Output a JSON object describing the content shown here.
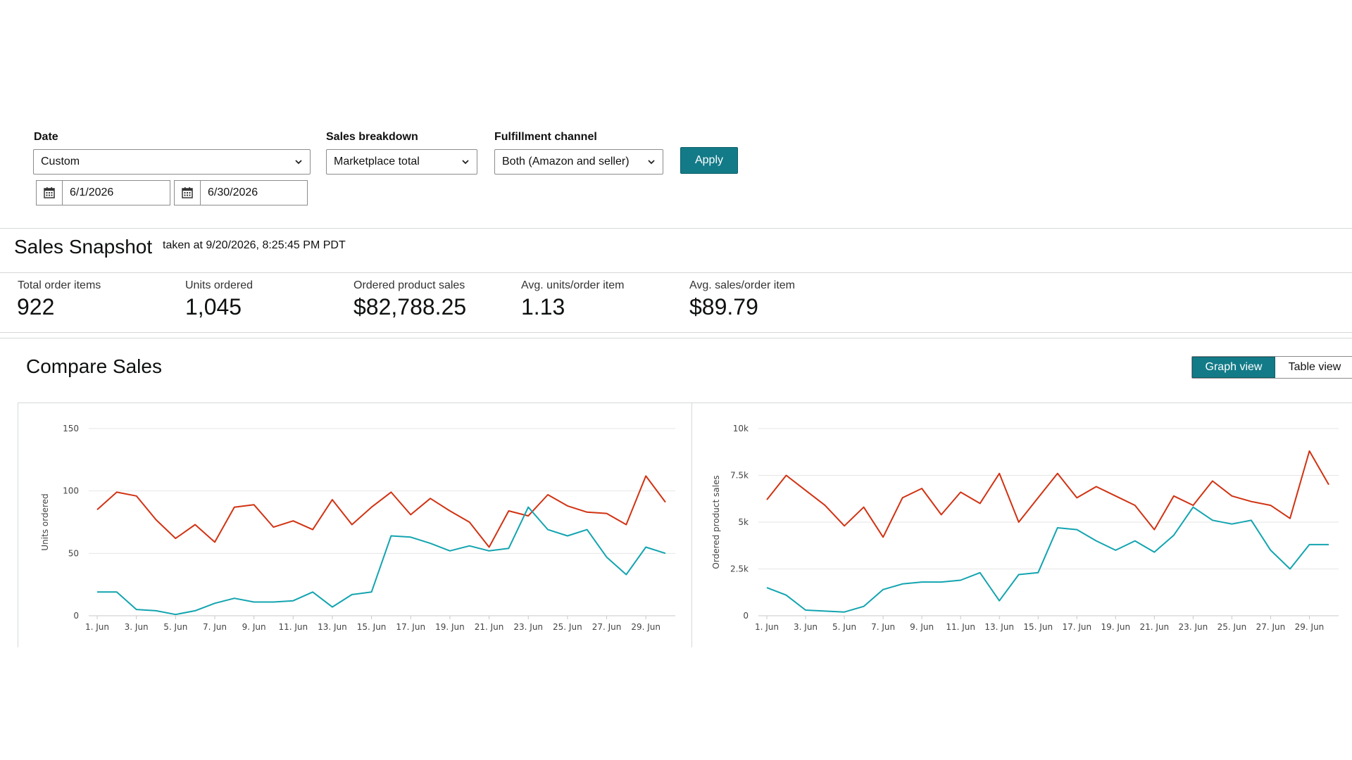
{
  "filters": {
    "date": {
      "label": "Date",
      "value": "Custom",
      "start": "6/1/2026",
      "end": "6/30/2026"
    },
    "breakdown": {
      "label": "Sales breakdown",
      "value": "Marketplace total"
    },
    "fulfillment": {
      "label": "Fulfillment channel",
      "value": "Both (Amazon and seller)"
    },
    "apply_label": "Apply"
  },
  "snapshot": {
    "title": "Sales Snapshot",
    "taken_at": "taken at 9/20/2026, 8:25:45 PM PDT",
    "metrics": [
      {
        "label": "Total order items",
        "value": "922"
      },
      {
        "label": "Units ordered",
        "value": "1,045"
      },
      {
        "label": "Ordered product sales",
        "value": "$82,788.25"
      },
      {
        "label": "Avg. units/order item",
        "value": "1.13"
      },
      {
        "label": "Avg. sales/order item",
        "value": "$89.79"
      }
    ]
  },
  "compare": {
    "title": "Compare Sales",
    "graph_view_label": "Graph view",
    "table_view_label": "Table view"
  },
  "colors": {
    "accent": "#137b88",
    "series_red": "#d13212",
    "series_teal": "#12a4b0"
  },
  "chart_data": [
    {
      "type": "line",
      "ylabel": "Units ordered",
      "ylim": [
        0,
        150
      ],
      "yticks": [
        "0",
        "50",
        "100",
        "150"
      ],
      "x": [
        "1. Jun",
        "2. Jun",
        "3. Jun",
        "4. Jun",
        "5. Jun",
        "6. Jun",
        "7. Jun",
        "8. Jun",
        "9. Jun",
        "10. Jun",
        "11. Jun",
        "12. Jun",
        "13. Jun",
        "14. Jun",
        "15. Jun",
        "16. Jun",
        "17. Jun",
        "18. Jun",
        "19. Jun",
        "20. Jun",
        "21. Jun",
        "22. Jun",
        "23. Jun",
        "24. Jun",
        "25. Jun",
        "26. Jun",
        "27. Jun",
        "28. Jun",
        "29. Jun",
        "30. Jun"
      ],
      "xticklabels": [
        "1. Jun",
        "3. Jun",
        "5. Jun",
        "7. Jun",
        "9. Jun",
        "11. Jun",
        "13. Jun",
        "15. Jun",
        "17. Jun",
        "19. Jun",
        "21. Jun",
        "23. Jun",
        "25. Jun",
        "27. Jun",
        "29. Jun"
      ],
      "series": [
        {
          "color": "#d13212",
          "values": [
            85,
            99,
            96,
            77,
            62,
            73,
            59,
            87,
            89,
            71,
            76,
            69,
            93,
            73,
            87,
            99,
            81,
            94,
            84,
            75,
            55,
            84,
            80,
            97,
            88,
            83,
            82,
            73,
            112,
            91
          ]
        },
        {
          "color": "#12a4b0",
          "values": [
            19,
            19,
            5,
            4,
            1,
            4,
            10,
            14,
            11,
            11,
            12,
            19,
            7,
            17,
            19,
            64,
            63,
            58,
            52,
            56,
            52,
            54,
            87,
            69,
            64,
            69,
            47,
            33,
            55,
            50
          ]
        }
      ]
    },
    {
      "type": "line",
      "ylabel": "Ordered product sales",
      "ylim": [
        0,
        10000
      ],
      "yticks": [
        "0",
        "2.5k",
        "5k",
        "7.5k",
        "10k"
      ],
      "x": [
        "1. Jun",
        "2. Jun",
        "3. Jun",
        "4. Jun",
        "5. Jun",
        "6. Jun",
        "7. Jun",
        "8. Jun",
        "9. Jun",
        "10. Jun",
        "11. Jun",
        "12. Jun",
        "13. Jun",
        "14. Jun",
        "15. Jun",
        "16. Jun",
        "17. Jun",
        "18. Jun",
        "19. Jun",
        "20. Jun",
        "21. Jun",
        "22. Jun",
        "23. Jun",
        "24. Jun",
        "25. Jun",
        "26. Jun",
        "27. Jun",
        "28. Jun",
        "29. Jun",
        "30. Jun"
      ],
      "xticklabels": [
        "1. Jun",
        "3. Jun",
        "5. Jun",
        "7. Jun",
        "9. Jun",
        "11. Jun",
        "13. Jun",
        "15. Jun",
        "17. Jun",
        "19. Jun",
        "21. Jun",
        "23. Jun",
        "25. Jun",
        "27. Jun",
        "29. Jun"
      ],
      "series": [
        {
          "color": "#d13212",
          "values": [
            6200,
            7500,
            6700,
            5900,
            4800,
            5800,
            4200,
            6300,
            6800,
            5400,
            6600,
            6000,
            7600,
            5000,
            6300,
            7600,
            6300,
            6900,
            6400,
            5900,
            4600,
            6400,
            5900,
            7200,
            6400,
            6100,
            5900,
            5200,
            8800,
            7000
          ]
        },
        {
          "color": "#12a4b0",
          "values": [
            1500,
            1100,
            300,
            250,
            200,
            500,
            1400,
            1700,
            1800,
            1800,
            1900,
            2300,
            800,
            2200,
            2300,
            4700,
            4600,
            4000,
            3500,
            4000,
            3400,
            4300,
            5800,
            5100,
            4900,
            5100,
            3500,
            2500,
            3800,
            3800
          ]
        }
      ]
    }
  ]
}
